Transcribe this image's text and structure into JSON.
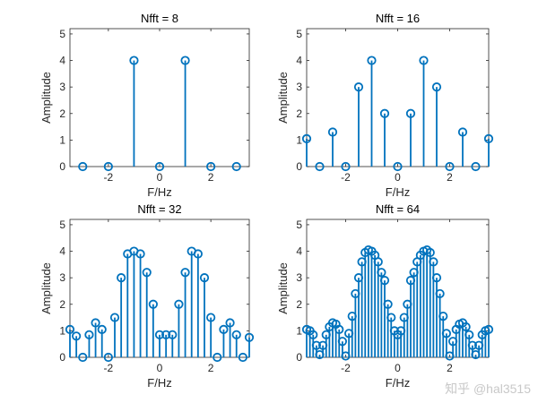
{
  "chart_data": [
    {
      "type": "stem",
      "title": "Nfft = 8",
      "xlabel": "F/Hz",
      "ylabel": "Amplitude",
      "xlim": [
        -3.5,
        3.5
      ],
      "ylim": [
        0,
        5.2
      ],
      "xticks": [
        -2,
        0,
        2
      ],
      "yticks": [
        0,
        1,
        2,
        3,
        4,
        5
      ],
      "x": [
        -3,
        -2,
        -1,
        0,
        1,
        2,
        3
      ],
      "values": [
        0,
        0,
        4,
        0,
        4,
        0,
        0
      ]
    },
    {
      "type": "stem",
      "title": "Nfft = 16",
      "xlabel": "F/Hz",
      "ylabel": "Amplitude",
      "xlim": [
        -3.5,
        3.5
      ],
      "ylim": [
        0,
        5.2
      ],
      "xticks": [
        -2,
        0,
        2
      ],
      "yticks": [
        0,
        1,
        2,
        3,
        4,
        5
      ],
      "x": [
        -3.5,
        -3,
        -2.5,
        -2,
        -1.5,
        -1,
        -0.5,
        0,
        0.5,
        1,
        1.5,
        2,
        2.5,
        3,
        3.5
      ],
      "values": [
        1.05,
        0,
        1.3,
        0,
        3.0,
        4.0,
        2.0,
        0,
        2.0,
        4.0,
        3.0,
        0,
        1.3,
        0,
        1.05
      ]
    },
    {
      "type": "stem",
      "title": "Nfft = 32",
      "xlabel": "F/Hz",
      "ylabel": "Amplitude",
      "xlim": [
        -3.5,
        3.5
      ],
      "ylim": [
        0,
        5.2
      ],
      "xticks": [
        -2,
        0,
        2
      ],
      "yticks": [
        0,
        1,
        2,
        3,
        4,
        5
      ],
      "x": [
        -3.5,
        -3.25,
        -3,
        -2.75,
        -2.5,
        -2.25,
        -2,
        -1.75,
        -1.5,
        -1.25,
        -1,
        -0.75,
        -0.5,
        -0.25,
        0,
        0.25,
        0.5,
        0.75,
        1,
        1.25,
        1.5,
        1.75,
        2,
        2.25,
        2.5,
        2.75,
        3,
        3.25,
        3.5
      ],
      "values": [
        1.05,
        0.8,
        0,
        0.85,
        1.3,
        1.05,
        0,
        1.5,
        3.0,
        3.9,
        4.0,
        3.9,
        3.2,
        2.0,
        0.85,
        0.85,
        0.85,
        2.0,
        3.2,
        4.0,
        3.9,
        3.0,
        1.5,
        0,
        1.05,
        1.3,
        0.85,
        0,
        0.75
      ]
    },
    {
      "type": "stem",
      "title": "Nfft = 64",
      "xlabel": "F/Hz",
      "ylabel": "Amplitude",
      "xlim": [
        -3.5,
        3.5
      ],
      "ylim": [
        0,
        5.2
      ],
      "xticks": [
        -2,
        0,
        2
      ],
      "yticks": [
        0,
        1,
        2,
        3,
        4,
        5
      ],
      "x": [
        -3.5,
        -3.375,
        -3.25,
        -3.125,
        -3,
        -2.875,
        -2.75,
        -2.625,
        -2.5,
        -2.375,
        -2.25,
        -2.125,
        -2,
        -1.875,
        -1.75,
        -1.625,
        -1.5,
        -1.375,
        -1.25,
        -1.125,
        -1,
        -0.875,
        -0.75,
        -0.625,
        -0.5,
        -0.375,
        -0.25,
        -0.125,
        0,
        0.125,
        0.25,
        0.375,
        0.5,
        0.625,
        0.75,
        0.875,
        1,
        1.125,
        1.25,
        1.375,
        1.5,
        1.625,
        1.75,
        1.875,
        2,
        2.125,
        2.25,
        2.375,
        2.5,
        2.625,
        2.75,
        2.875,
        3,
        3.125,
        3.25,
        3.375,
        3.5
      ],
      "values": [
        1.05,
        1.0,
        0.85,
        0.45,
        0.1,
        0.45,
        0.85,
        1.15,
        1.3,
        1.25,
        1.05,
        0.6,
        0.05,
        0.9,
        1.55,
        2.4,
        3.0,
        3.6,
        3.95,
        4.05,
        4.0,
        3.85,
        3.6,
        3.2,
        2.9,
        2.0,
        1.5,
        1.0,
        0.85,
        1.0,
        1.5,
        2.0,
        2.9,
        3.2,
        3.6,
        3.85,
        4.0,
        4.05,
        3.95,
        3.6,
        3.0,
        2.4,
        1.55,
        0.9,
        0.05,
        0.6,
        1.05,
        1.25,
        1.3,
        1.15,
        0.85,
        0.45,
        0.1,
        0.45,
        0.85,
        1.0,
        1.05
      ]
    }
  ],
  "style": {
    "stem_color": "#0072bd",
    "axis_color": "#262626"
  },
  "watermark": "知乎 @hal3515"
}
